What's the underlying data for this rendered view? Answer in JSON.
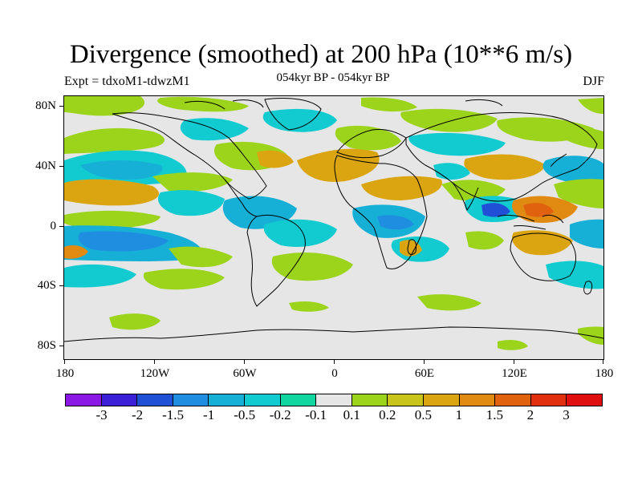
{
  "title": "Divergence (smoothed) at 200 hPa (10**6 m/s)",
  "subtitle": "054kyr BP - 054kyr BP",
  "left_label": "Expt = tdxoM1-tdwzM1",
  "right_label": "DJF",
  "map": {
    "type": "filled-contour-world-map",
    "lat_labels": [
      "80N",
      "40N",
      "0",
      "40S",
      "80S"
    ],
    "lon_labels": [
      "180",
      "120W",
      "60W",
      "0",
      "60E",
      "120E",
      "180"
    ]
  },
  "colorbar": {
    "levels": [
      "-3",
      "-2",
      "-1.5",
      "-1",
      "-0.5",
      "-0.2",
      "-0.1",
      "0.1",
      "0.2",
      "0.5",
      "1",
      "1.5",
      "2",
      "3"
    ],
    "colors": [
      "#8a19e6",
      "#3b1fd6",
      "#1f50d6",
      "#1f8ee0",
      "#16b0d6",
      "#12cbd0",
      "#10d6a0",
      "#e6e6e6",
      "#9bd41a",
      "#c9c41a",
      "#dba512",
      "#e08a12",
      "#e0620f",
      "#e0300f",
      "#e00f0f"
    ]
  }
}
